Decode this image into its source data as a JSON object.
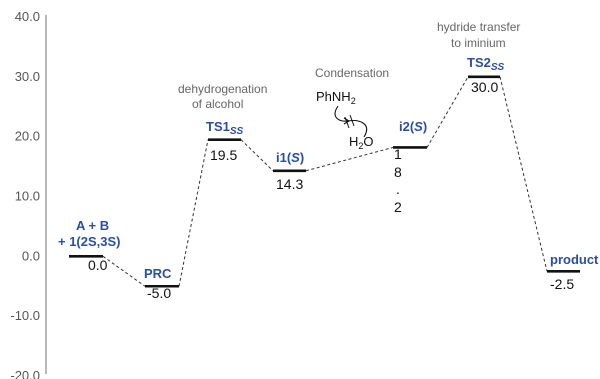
{
  "colors": {
    "axis": "#888888",
    "level": "#111111",
    "connector": "#333333",
    "label": "#2b4ea2",
    "note": "#666666"
  },
  "chart_data": {
    "type": "energy-profile",
    "ylim": [
      -20,
      40
    ],
    "y_ticks": [
      "40.0",
      "30.0",
      "20.0",
      "10.0",
      "0.0",
      "-10.0",
      "-20.0"
    ],
    "levels": [
      {
        "id": "AB",
        "energy": 0.0,
        "value_label": "0.0",
        "label_line1": "A + B",
        "label_line2": "+ 1(2S,3S)"
      },
      {
        "id": "PRC",
        "energy": -5.0,
        "value_label": "-5.0",
        "label": "PRC"
      },
      {
        "id": "TS1",
        "energy": 19.5,
        "value_label": "19.5",
        "label": "TS1",
        "label_sub": "SS"
      },
      {
        "id": "i1",
        "energy": 14.3,
        "value_label": "14.3",
        "label": "i1(",
        "label_ital": "S",
        "label_end": ")"
      },
      {
        "id": "i2",
        "energy": 18.2,
        "value_label_chars": [
          "1",
          "8",
          ".",
          "2"
        ],
        "label": "i2(",
        "label_ital": "S",
        "label_end": ")"
      },
      {
        "id": "TS2",
        "energy": 30.0,
        "value_label": "30.0",
        "label": "TS2",
        "label_sub": "SS"
      },
      {
        "id": "product",
        "energy": -2.5,
        "value_label": "-2.5",
        "label": "product"
      }
    ],
    "annotations": {
      "dehydro_line1": "dehydrogenation",
      "dehydro_line2": "of alcohol",
      "condensation": "Condensation",
      "hydride_line1": "hydride transfer",
      "hydride_line2": "to iminium",
      "amine": "PhNH",
      "amine_sub": "2",
      "water_h": "H",
      "water_sub": "2",
      "water_o": "O"
    }
  }
}
